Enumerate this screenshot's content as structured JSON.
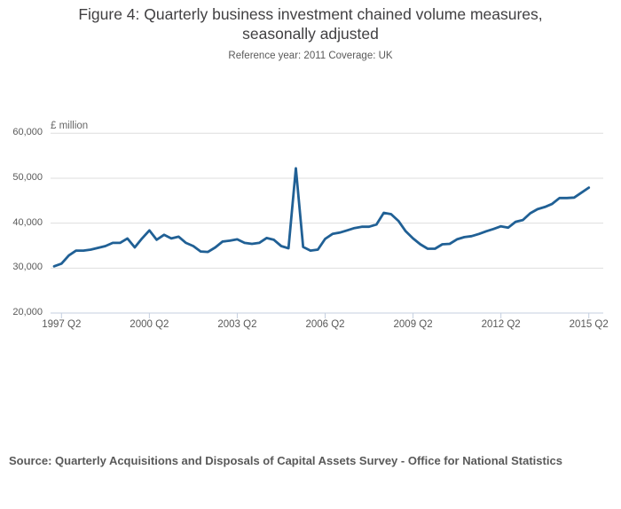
{
  "figure": {
    "title": "Figure 4: Quarterly business investment chained volume measures, seasonally adjusted",
    "subtitle": "Reference year: 2011 Coverage: UK",
    "source": "Source: Quarterly Acquisitions and Disposals of Capital Assets Survey - Office for National Statistics"
  },
  "colors": {
    "line": "#206095",
    "grid": "#dedede",
    "axis": "#c4cfdf",
    "text": "#595959",
    "title": "#414042"
  },
  "chart_data": {
    "type": "line",
    "title": "Figure 4: Quarterly business investment chained volume measures, seasonally adjusted",
    "subtitle": "Reference year: 2011 Coverage: UK",
    "ylabel": "£ million",
    "xlabel": "",
    "ylim": [
      20000,
      60000
    ],
    "y_ticks": [
      20000,
      30000,
      40000,
      50000,
      60000
    ],
    "y_tick_labels": [
      "20,000",
      "30,000",
      "40,000",
      "50,000",
      "60,000"
    ],
    "x_tick_labels": [
      "1997 Q2",
      "2000 Q2",
      "2003 Q2",
      "2006 Q2",
      "2009 Q2",
      "2012 Q2",
      "2015 Q2"
    ],
    "x_range": [
      "1997 Q1",
      "2015 Q2"
    ],
    "grid": "horizontal gridlines on",
    "legend": "none",
    "series": [
      {
        "name": "Business investment, chained volume measure, seasonally adjusted",
        "color": "#206095",
        "quarters": [
          "1997 Q1",
          "1997 Q2",
          "1997 Q3",
          "1997 Q4",
          "1998 Q1",
          "1998 Q2",
          "1998 Q3",
          "1998 Q4",
          "1999 Q1",
          "1999 Q2",
          "1999 Q3",
          "1999 Q4",
          "2000 Q1",
          "2000 Q2",
          "2000 Q3",
          "2000 Q4",
          "2001 Q1",
          "2001 Q2",
          "2001 Q3",
          "2001 Q4",
          "2002 Q1",
          "2002 Q2",
          "2002 Q3",
          "2002 Q4",
          "2003 Q1",
          "2003 Q2",
          "2003 Q3",
          "2003 Q4",
          "2004 Q1",
          "2004 Q2",
          "2004 Q3",
          "2004 Q4",
          "2005 Q1",
          "2005 Q2",
          "2005 Q3",
          "2005 Q4",
          "2006 Q1",
          "2006 Q2",
          "2006 Q3",
          "2006 Q4",
          "2007 Q1",
          "2007 Q2",
          "2007 Q3",
          "2007 Q4",
          "2008 Q1",
          "2008 Q2",
          "2008 Q3",
          "2008 Q4",
          "2009 Q1",
          "2009 Q2",
          "2009 Q3",
          "2009 Q4",
          "2010 Q1",
          "2010 Q2",
          "2010 Q3",
          "2010 Q4",
          "2011 Q1",
          "2011 Q2",
          "2011 Q3",
          "2011 Q4",
          "2012 Q1",
          "2012 Q2",
          "2012 Q3",
          "2012 Q4",
          "2013 Q1",
          "2013 Q2",
          "2013 Q3",
          "2013 Q4",
          "2014 Q1",
          "2014 Q2",
          "2014 Q3",
          "2014 Q4",
          "2015 Q1",
          "2015 Q2"
        ],
        "values": [
          30400,
          31000,
          32800,
          33900,
          33900,
          34100,
          34500,
          34900,
          35600,
          35600,
          36600,
          34600,
          36600,
          38400,
          36300,
          37400,
          36600,
          37000,
          35600,
          34900,
          33700,
          33600,
          34600,
          35900,
          36100,
          36400,
          35600,
          35400,
          35600,
          36700,
          36300,
          34900,
          34400,
          52200,
          34700,
          33900,
          34100,
          36500,
          37600,
          37900,
          38400,
          38900,
          39200,
          39200,
          39700,
          42300,
          42000,
          40500,
          38200,
          36600,
          35300,
          34300,
          34300,
          35300,
          35400,
          36400,
          36900,
          37100,
          37600,
          38200,
          38700,
          39300,
          39000,
          40300,
          40700,
          42200,
          43100,
          43600,
          44300,
          45600,
          45600,
          45700,
          46800,
          47900
        ]
      }
    ]
  }
}
